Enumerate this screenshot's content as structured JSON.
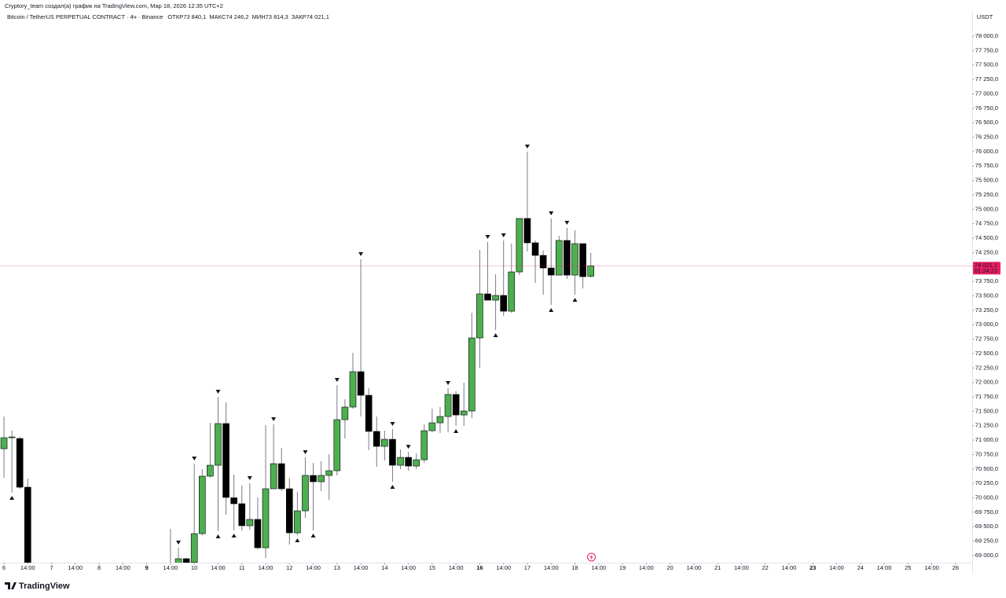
{
  "chart_data": {
    "type": "candlestick",
    "credit": "Cryptory_team создал(а) график на TradingView.com, Мар 18, 2026 12:35 UTC+2",
    "symbol": "Bitcoin / TetherUS PERPETUAL CONTRACT · 4ч · Binance",
    "legend_ohlc": [
      {
        "name": "ОТКР",
        "value": 73840.1,
        "label": "73 840,1"
      },
      {
        "name": "МАКС",
        "value": 74246.2,
        "label": "74 246,2"
      },
      {
        "name": "МИН",
        "value": 73814.3,
        "label": "73 814,3"
      },
      {
        "name": "ЗАКР",
        "value": 74021.1,
        "label": "74 021,1"
      }
    ],
    "currency": "USDT",
    "brand": "TradingView",
    "last_price": {
      "value": 74021.1,
      "label": "74 021,1"
    },
    "countdown": "01:24:23",
    "last_price_color": "#e91e63",
    "up_color": "#4caf50",
    "down_color": "#000000",
    "wick_color": "#787b86",
    "xlim": [
      -0.5,
      122.1
    ],
    "ylim": [
      68877,
      78436
    ],
    "open": [
      70851,
      71042,
      71028,
      70184,
      null,
      null,
      null,
      null,
      null,
      null,
      null,
      null,
      null,
      null,
      null,
      null,
      null,
      null,
      null,
      null,
      null,
      68750,
      68850,
      68945,
      68880,
      69380,
      70375,
      70565,
      71287,
      70000,
      69898,
      69517,
      69626,
      69135,
      70157,
      70592,
      70157,
      69394,
      69775,
      70388,
      70279,
      70388,
      70470,
      71355,
      71573,
      72186,
      71777,
      71151,
      70892,
      71014,
      70565,
      70701,
      70551,
      70660,
      71164,
      71300,
      71409,
      71791,
      71436,
      71505,
      72771,
      73534,
      73425,
      73507,
      73234,
      73915,
      74841,
      74419,
      74201,
      73983,
      73860,
      74460,
      73860,
      74405,
      73840.1
    ],
    "high": [
      71409,
      71164,
      71055,
      70334,
      null,
      null,
      null,
      null,
      null,
      null,
      null,
      null,
      null,
      null,
      null,
      null,
      null,
      null,
      null,
      null,
      null,
      69462,
      69135,
      68960,
      70592,
      70497,
      71300,
      71750,
      71655,
      70402,
      70211,
      70252,
      70007,
      71260,
      71273,
      70865,
      70347,
      70102,
      70701,
      70606,
      70633,
      70756,
      71954,
      71709,
      72513,
      74134,
      71900,
      71409,
      71164,
      71192,
      70837,
      70796,
      70769,
      71273,
      71545,
      71573,
      71900,
      71845,
      71995,
      73207,
      74296,
      74432,
      73874,
      74460,
      74405,
      74841,
      75998,
      74460,
      74283,
      74841,
      74541,
      74678,
      74637,
      74405,
      74246.2
    ],
    "low": [
      70347,
      70089,
      70157,
      68700,
      null,
      null,
      null,
      null,
      null,
      null,
      null,
      null,
      null,
      null,
      null,
      null,
      null,
      null,
      null,
      null,
      null,
      68600,
      68700,
      68800,
      68800,
      69350,
      70350,
      69421,
      69707,
      69435,
      69435,
      69449,
      69108,
      68958,
      70157,
      70116,
      69190,
      69353,
      69653,
      69435,
      70116,
      69966,
      70388,
      71028,
      71545,
      71409,
      70824,
      70538,
      70647,
      70279,
      70497,
      70470,
      70497,
      70606,
      71137,
      71123,
      71137,
      71246,
      71246,
      71383,
      72254,
      73452,
      72907,
      73152,
      73207,
      73860,
      74270,
      73724,
      73520,
      73343,
      73860,
      73792,
      73520,
      73629,
      73814.3
    ],
    "close": [
      71042,
      71055,
      70184,
      68800,
      null,
      null,
      null,
      null,
      null,
      null,
      null,
      null,
      null,
      null,
      null,
      null,
      null,
      null,
      null,
      null,
      null,
      68820,
      68945,
      68870,
      69380,
      70375,
      70565,
      71287,
      70007,
      69898,
      69517,
      69626,
      69135,
      70157,
      70592,
      70157,
      69394,
      69775,
      70388,
      70279,
      70388,
      70470,
      71355,
      71573,
      72186,
      71777,
      71151,
      70892,
      71014,
      70565,
      70701,
      70551,
      70660,
      71164,
      71300,
      71409,
      71791,
      71436,
      71505,
      72771,
      73534,
      73425,
      73507,
      73234,
      73915,
      74841,
      74419,
      74201,
      73983,
      73860,
      74460,
      73860,
      74405,
      73833,
      74021.1
    ],
    "fractal": [
      null,
      "low",
      null,
      null,
      null,
      null,
      null,
      null,
      null,
      null,
      null,
      null,
      null,
      null,
      null,
      null,
      null,
      null,
      null,
      null,
      null,
      null,
      "high",
      null,
      "high",
      null,
      null,
      "both",
      null,
      "low",
      null,
      "high",
      null,
      null,
      "high",
      null,
      null,
      "low",
      "high",
      "low",
      null,
      null,
      "high",
      null,
      null,
      "high",
      null,
      null,
      null,
      "both",
      null,
      "high",
      null,
      null,
      null,
      null,
      "high",
      "low",
      null,
      null,
      null,
      "high",
      "low",
      "high",
      null,
      null,
      "high",
      null,
      null,
      "both",
      null,
      "high",
      "low",
      null,
      null
    ],
    "yticks": [
      {
        "value": 78000,
        "label": "78 000,0"
      },
      {
        "value": 77750,
        "label": "77 750,0"
      },
      {
        "value": 77500,
        "label": "77 500,0"
      },
      {
        "value": 77250,
        "label": "77 250,0"
      },
      {
        "value": 77000,
        "label": "77 000,0"
      },
      {
        "value": 76750,
        "label": "76 750,0"
      },
      {
        "value": 76500,
        "label": "76 500,0"
      },
      {
        "value": 76250,
        "label": "76 250,0"
      },
      {
        "value": 76000,
        "label": "76 000,0"
      },
      {
        "value": 75750,
        "label": "75 750,0"
      },
      {
        "value": 75500,
        "label": "75 500,0"
      },
      {
        "value": 75250,
        "label": "75 250,0"
      },
      {
        "value": 75000,
        "label": "75 000,0"
      },
      {
        "value": 74750,
        "label": "74 750,0"
      },
      {
        "value": 74500,
        "label": "74 500,0"
      },
      {
        "value": 74250,
        "label": "74 250,0"
      },
      {
        "value": 74000,
        "label": "74 000,0"
      },
      {
        "value": 73750,
        "label": "73 750,0"
      },
      {
        "value": 73500,
        "label": "73 500,0"
      },
      {
        "value": 73250,
        "label": "73 250,0"
      },
      {
        "value": 73000,
        "label": "73 000,0"
      },
      {
        "value": 72750,
        "label": "72 750,0"
      },
      {
        "value": 72500,
        "label": "72 500,0"
      },
      {
        "value": 72250,
        "label": "72 250,0"
      },
      {
        "value": 72000,
        "label": "72 000,0"
      },
      {
        "value": 71750,
        "label": "71 750,0"
      },
      {
        "value": 71500,
        "label": "71 500,0"
      },
      {
        "value": 71250,
        "label": "71 250,0"
      },
      {
        "value": 71000,
        "label": "71 000,0"
      },
      {
        "value": 70750,
        "label": "70 750,0"
      },
      {
        "value": 70500,
        "label": "70 500,0"
      },
      {
        "value": 70250,
        "label": "70 250,0"
      },
      {
        "value": 70000,
        "label": "70 000,0"
      },
      {
        "value": 69750,
        "label": "69 750,0"
      },
      {
        "value": 69500,
        "label": "69 500,0"
      },
      {
        "value": 69250,
        "label": "69 250,0"
      },
      {
        "value": 69000,
        "label": "69 000,0"
      }
    ],
    "xticks": [
      {
        "value": 0,
        "label": "6"
      },
      {
        "value": 3,
        "label": "14:00"
      },
      {
        "value": 6,
        "label": "7"
      },
      {
        "value": 9,
        "label": "14:00"
      },
      {
        "value": 12,
        "label": "8"
      },
      {
        "value": 15,
        "label": "14:00"
      },
      {
        "value": 18,
        "label": "9",
        "bold": true
      },
      {
        "value": 21,
        "label": "14:00"
      },
      {
        "value": 24,
        "label": "10"
      },
      {
        "value": 27,
        "label": "14:00"
      },
      {
        "value": 30,
        "label": "11"
      },
      {
        "value": 33,
        "label": "14:00"
      },
      {
        "value": 36,
        "label": "12"
      },
      {
        "value": 39,
        "label": "14:00"
      },
      {
        "value": 42,
        "label": "13"
      },
      {
        "value": 45,
        "label": "14:00"
      },
      {
        "value": 48,
        "label": "14"
      },
      {
        "value": 51,
        "label": "14:00"
      },
      {
        "value": 54,
        "label": "15"
      },
      {
        "value": 57,
        "label": "14:00"
      },
      {
        "value": 60,
        "label": "16",
        "bold": true
      },
      {
        "value": 63,
        "label": "14:00"
      },
      {
        "value": 66,
        "label": "17"
      },
      {
        "value": 69,
        "label": "14:00"
      },
      {
        "value": 72,
        "label": "18"
      },
      {
        "value": 75,
        "label": "14:00"
      },
      {
        "value": 78,
        "label": "19"
      },
      {
        "value": 81,
        "label": "14:00"
      },
      {
        "value": 84,
        "label": "20"
      },
      {
        "value": 87,
        "label": "14:00"
      },
      {
        "value": 90,
        "label": "21"
      },
      {
        "value": 93,
        "label": "14:00"
      },
      {
        "value": 96,
        "label": "22"
      },
      {
        "value": 99,
        "label": "14:00"
      },
      {
        "value": 102,
        "label": "23",
        "bold": true
      },
      {
        "value": 105,
        "label": "14:00"
      },
      {
        "value": 108,
        "label": "24"
      },
      {
        "value": 111,
        "label": "14:00"
      },
      {
        "value": 114,
        "label": "25"
      },
      {
        "value": 117,
        "label": "14:00"
      },
      {
        "value": 120,
        "label": "26"
      }
    ]
  }
}
